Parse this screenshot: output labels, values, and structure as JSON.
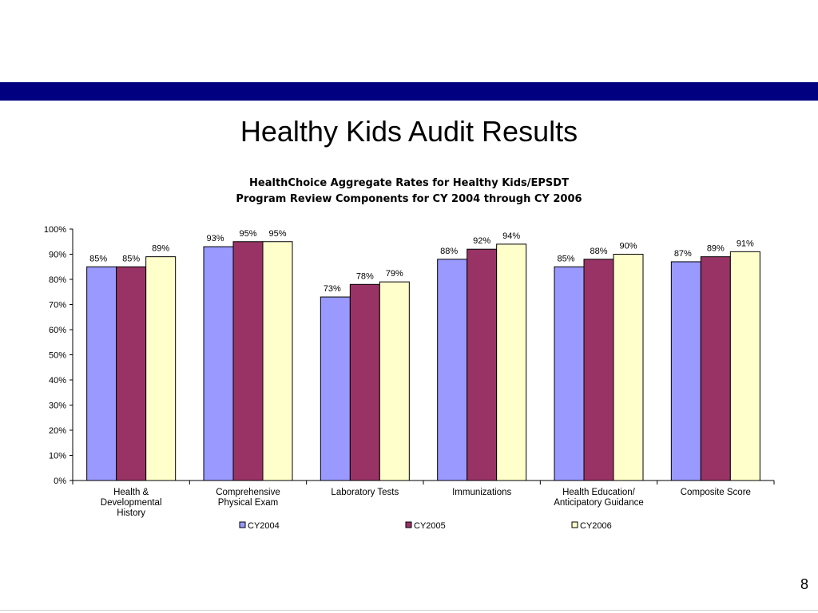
{
  "slide": {
    "title": "Healthy Kids Audit Results",
    "page_number": "8",
    "band_color": "#000080"
  },
  "chart_data": {
    "type": "bar",
    "title_lines": [
      "HealthChoice Aggregate Rates for Healthy Kids/EPSDT",
      "Program Review Components for CY 2004 through CY 2006"
    ],
    "categories": [
      [
        "Health &",
        "Developmental",
        "History"
      ],
      [
        "Comprehensive",
        "Physical Exam"
      ],
      [
        "Laboratory Tests"
      ],
      [
        "Immunizations"
      ],
      [
        "Health Education/",
        "Anticipatory Guidance"
      ],
      [
        "Composite Score"
      ]
    ],
    "series": [
      {
        "name": "CY2004",
        "color": "#9999ff",
        "values": [
          85,
          93,
          73,
          88,
          85,
          87
        ]
      },
      {
        "name": "CY2005",
        "color": "#993366",
        "values": [
          85,
          95,
          78,
          92,
          88,
          89
        ]
      },
      {
        "name": "CY2006",
        "color": "#ffffcc",
        "values": [
          89,
          95,
          79,
          94,
          90,
          91
        ]
      }
    ],
    "data_labels": [
      [
        "85%",
        "93%",
        "73%",
        "88%",
        "85%",
        "87%"
      ],
      [
        "85%",
        "95%",
        "78%",
        "92%",
        "88%",
        "89%"
      ],
      [
        "89%",
        "95%",
        "79%",
        "94%",
        "90%",
        "91%"
      ]
    ],
    "y_ticks": [
      "0%",
      "10%",
      "20%",
      "30%",
      "40%",
      "50%",
      "60%",
      "70%",
      "80%",
      "90%",
      "100%"
    ],
    "ylim": [
      0,
      100
    ],
    "grid": false,
    "legend_position": "bottom"
  }
}
